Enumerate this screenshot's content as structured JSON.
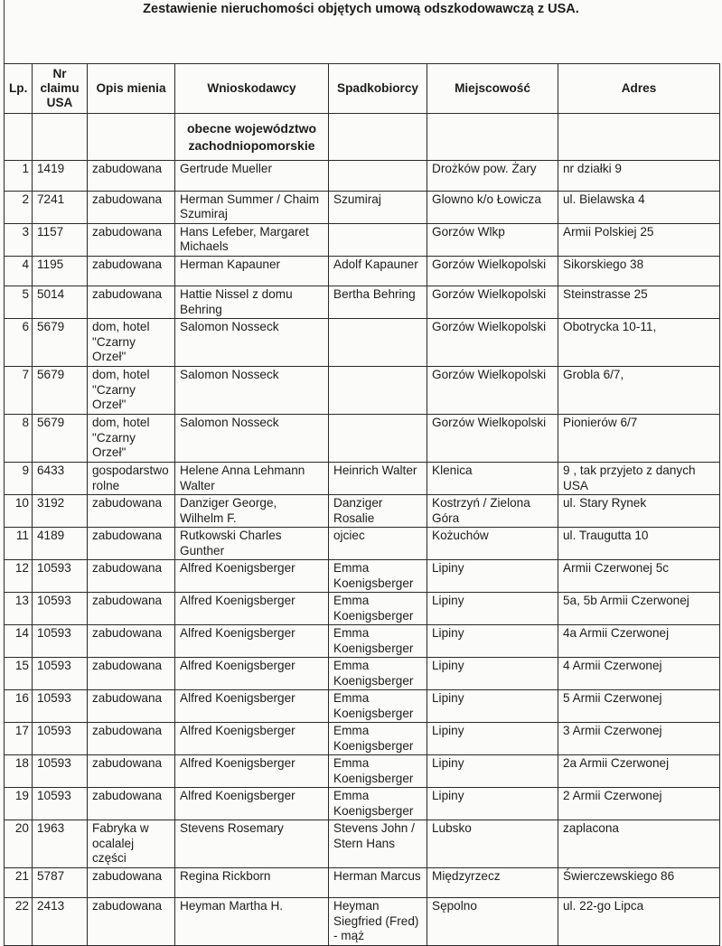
{
  "title": "Zestawienie nieruchomości objętych umową odszkodowawczą z USA.",
  "headers": [
    "Lp.",
    "Nr claimu USA",
    "Opis mienia",
    "Wnioskodawcy",
    "Spadkobiorcy",
    "Miejscowość",
    "Adres"
  ],
  "section": "obecne województwo zachodniopomorskie",
  "rows": [
    {
      "lp": "1",
      "nr": "1419",
      "opis": "zabudowana",
      "wn": "Gertrude Mueller",
      "sp": "",
      "mi": "Drożków pow. Żary",
      "ad": "nr działki 9"
    },
    {
      "lp": "2",
      "nr": "7241",
      "opis": "zabudowana",
      "wn": "Herman Summer / Chaim Szumiraj",
      "sp": "Szumiraj",
      "mi": "Glowno k/o Łowicza",
      "ad": "ul. Bielawska 4"
    },
    {
      "lp": "3",
      "nr": "1157",
      "opis": "zabudowana",
      "wn": "Hans Lefeber, Margaret Michaels",
      "sp": "",
      "mi": "Gorzów Wlkp",
      "ad": "Armii Polskiej 25"
    },
    {
      "lp": "4",
      "nr": "1195",
      "opis": "zabudowana",
      "wn": "Herman Kapauner",
      "sp": "Adolf Kapauner",
      "mi": "Gorzów Wielkopolski",
      "ad": "Sikorskiego 38"
    },
    {
      "lp": "5",
      "nr": "5014",
      "opis": "zabudowana",
      "wn": "Hattie Nissel z domu Behring",
      "sp": "Bertha Behring",
      "mi": "Gorzów Wielkopolski",
      "ad": "Steinstrasse 25"
    },
    {
      "lp": "6",
      "nr": "5679",
      "opis": "dom, hotel \"Czarny Orzeł\"",
      "wn": "Salomon Nosseck",
      "sp": "",
      "mi": "Gorzów Wielkopolski",
      "ad": "Obotrycka 10-11,"
    },
    {
      "lp": "7",
      "nr": "5679",
      "opis": "dom, hotel \"Czarny Orzeł\"",
      "wn": "Salomon Nosseck",
      "sp": "",
      "mi": "Gorzów Wielkopolski",
      "ad": "Grobla 6/7,"
    },
    {
      "lp": "8",
      "nr": "5679",
      "opis": "dom, hotel \"Czarny Orzeł\"",
      "wn": "Salomon Nosseck",
      "sp": "",
      "mi": "Gorzów Wielkopolski",
      "ad": "Pionierów 6/7"
    },
    {
      "lp": "9",
      "nr": "6433",
      "opis": "gospodarstwo rolne",
      "wn": "Helene Anna Lehmann Walter",
      "sp": "Heinrich Walter",
      "mi": "Klenica",
      "ad": "9 , tak przyjeto z danych USA"
    },
    {
      "lp": "10",
      "nr": "3192",
      "opis": "zabudowana",
      "wn": "Danziger George, Wilhelm F.",
      "sp": "Danziger Rosalie",
      "mi": "Kostrzyń / Zielona Góra",
      "ad": "ul. Stary Rynek"
    },
    {
      "lp": "11",
      "nr": "4189",
      "opis": "zabudowana",
      "wn": "Rutkowski Charles Gunther",
      "sp": "ojciec",
      "mi": "Kożuchów",
      "ad": "ul. Traugutta 10"
    },
    {
      "lp": "12",
      "nr": "10593",
      "opis": "zabudowana",
      "wn": "Alfred Koenigsberger",
      "sp": "Emma Koenigsberger",
      "mi": "Lipiny",
      "ad": "Armii Czerwonej 5c"
    },
    {
      "lp": "13",
      "nr": "10593",
      "opis": "zabudowana",
      "wn": "Alfred Koenigsberger",
      "sp": "Emma Koenigsberger",
      "mi": "Lipiny",
      "ad": "5a, 5b Armii Czerwonej"
    },
    {
      "lp": "14",
      "nr": "10593",
      "opis": "zabudowana",
      "wn": "Alfred Koenigsberger",
      "sp": "Emma Koenigsberger",
      "mi": "Lipiny",
      "ad": "4a Armii Czerwonej"
    },
    {
      "lp": "15",
      "nr": "10593",
      "opis": "zabudowana",
      "wn": "Alfred Koenigsberger",
      "sp": "Emma Koenigsberger",
      "mi": "Lipiny",
      "ad": "4 Armii Czerwonej"
    },
    {
      "lp": "16",
      "nr": "10593",
      "opis": "zabudowana",
      "wn": "Alfred Koenigsberger",
      "sp": "Emma Koenigsberger",
      "mi": "Lipiny",
      "ad": "5 Armii Czerwonej"
    },
    {
      "lp": "17",
      "nr": "10593",
      "opis": "zabudowana",
      "wn": "Alfred Koenigsberger",
      "sp": "Emma Koenigsberger",
      "mi": "Lipiny",
      "ad": "3 Armii Czerwonej"
    },
    {
      "lp": "18",
      "nr": "10593",
      "opis": "zabudowana",
      "wn": "Alfred Koenigsberger",
      "sp": "Emma Koenigsberger",
      "mi": "Lipiny",
      "ad": "2a Armii Czerwonej"
    },
    {
      "lp": "19",
      "nr": "10593",
      "opis": "zabudowana",
      "wn": "Alfred Koenigsberger",
      "sp": "Emma Koenigsberger",
      "mi": "Lipiny",
      "ad": "2 Armii Czerwonej"
    },
    {
      "lp": "20",
      "nr": "1963",
      "opis": "Fabryka w ocalalej części",
      "wn": "Stevens Rosemary",
      "sp": "Stevens John / Stern Hans",
      "mi": "Lubsko",
      "ad": " zaplacona"
    },
    {
      "lp": "21",
      "nr": "5787",
      "opis": "zabudowana",
      "wn": "Regina Rickborn",
      "sp": "Herman Marcus",
      "mi": "Międzyrzecz",
      "ad": "Świerczewskiego 86"
    },
    {
      "lp": "22",
      "nr": "2413",
      "opis": "zabudowana",
      "wn": "Heyman Martha H.",
      "sp": "Heyman Siegfried (Fred) - mąż",
      "mi": "Sępolno",
      "ad": "ul. 22-go Lipca"
    }
  ]
}
